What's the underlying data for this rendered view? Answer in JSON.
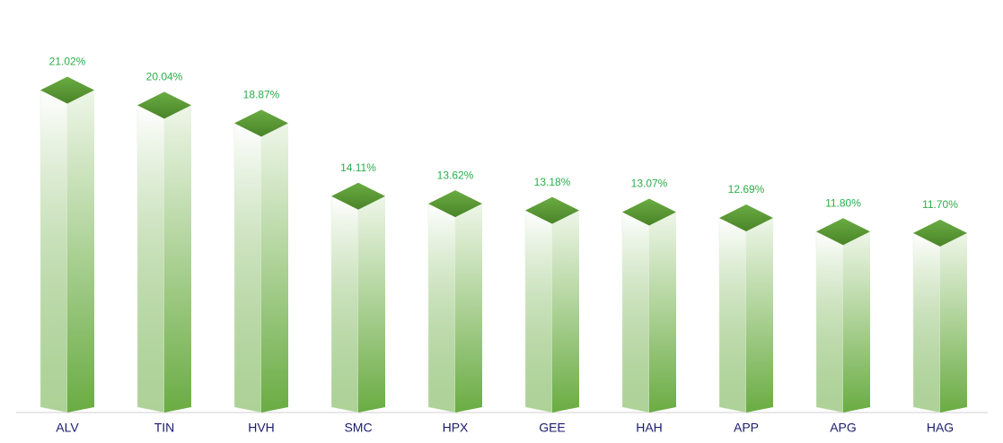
{
  "chart_data": {
    "type": "bar3d",
    "categories": [
      "ALV",
      "TIN",
      "HVH",
      "SMC",
      "HPX",
      "GEE",
      "HAH",
      "APP",
      "APG",
      "HAG"
    ],
    "values": [
      21.02,
      20.04,
      18.87,
      14.11,
      13.62,
      13.18,
      13.07,
      12.69,
      11.8,
      11.7
    ],
    "value_labels": [
      "21.02%",
      "20.04%",
      "18.87%",
      "14.11%",
      "13.62%",
      "13.18%",
      "13.07%",
      "12.69%",
      "11.80%",
      "11.70%"
    ],
    "color": "#6aac43",
    "label_color": "#2aae4a"
  }
}
